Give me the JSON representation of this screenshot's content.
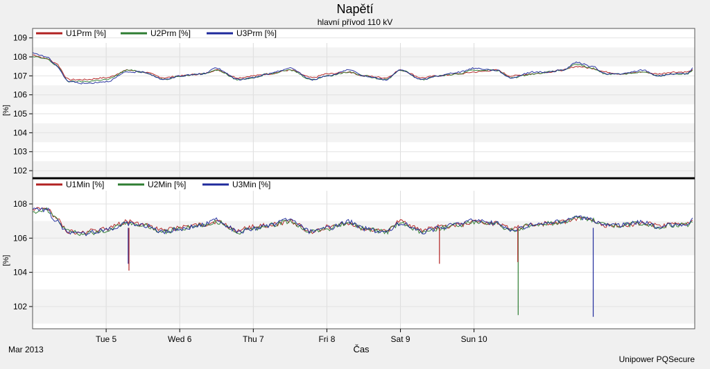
{
  "title": "Napětí",
  "subtitle": "hlavní přívod 110 kV",
  "footer": "Unipower PQSecure",
  "colors": {
    "phase1": "#b22222",
    "phase2": "#2e7d32",
    "phase3": "#1f2a9c"
  },
  "chart_data": [
    {
      "type": "line",
      "panel": "top",
      "ylabel": "[%]",
      "ylim": [
        101.6,
        109.5
      ],
      "yticks": [
        "102",
        "103",
        "104",
        "105",
        "106",
        "107",
        "108",
        "109"
      ],
      "grid": true,
      "legend": [
        "U1Prm [%]",
        "U2Prm [%]",
        "U3Prm [%]"
      ],
      "x_days": [
        3.0,
        3.2,
        3.3,
        3.5,
        3.7,
        4.0,
        4.3,
        4.5,
        4.8,
        5.0,
        5.3,
        5.5,
        5.8,
        6.0,
        6.2,
        6.5,
        6.8,
        7.0,
        7.3,
        7.5,
        7.8,
        8.0,
        8.3,
        8.5,
        8.8,
        9.0,
        9.3,
        9.5,
        9.8,
        10.0,
        10.2,
        10.4,
        10.6,
        10.8,
        11.0,
        11.3,
        11.5,
        11.7,
        11.9,
        11.97
      ],
      "series": [
        {
          "name": "U1Prm [%]",
          "values": [
            108.1,
            107.9,
            107.7,
            106.8,
            106.8,
            106.9,
            107.3,
            107.2,
            106.9,
            107.0,
            107.1,
            107.3,
            106.9,
            107.0,
            107.1,
            107.3,
            106.9,
            107.1,
            107.2,
            107.0,
            106.9,
            107.3,
            106.9,
            107.0,
            107.1,
            107.2,
            107.3,
            107.0,
            107.1,
            107.2,
            107.3,
            107.5,
            107.4,
            107.2,
            107.1,
            107.2,
            107.1,
            107.2,
            107.2,
            107.3
          ]
        },
        {
          "name": "U2Prm [%]",
          "values": [
            108.0,
            107.9,
            107.6,
            106.7,
            106.7,
            106.8,
            107.3,
            107.2,
            106.8,
            107.0,
            107.1,
            107.3,
            106.8,
            106.9,
            107.1,
            107.3,
            106.8,
            107.0,
            107.2,
            107.0,
            106.8,
            107.3,
            106.8,
            107.0,
            107.1,
            107.3,
            107.3,
            106.9,
            107.1,
            107.2,
            107.3,
            107.6,
            107.4,
            107.1,
            107.1,
            107.2,
            107.0,
            107.1,
            107.1,
            107.3
          ]
        },
        {
          "name": "U3Prm [%]",
          "values": [
            108.2,
            108.0,
            107.6,
            106.7,
            106.6,
            106.7,
            107.2,
            107.2,
            106.8,
            107.0,
            107.1,
            107.4,
            106.8,
            106.9,
            107.1,
            107.4,
            106.8,
            107.0,
            107.3,
            107.0,
            106.8,
            107.3,
            106.8,
            107.0,
            107.2,
            107.4,
            107.3,
            106.9,
            107.2,
            107.2,
            107.3,
            107.7,
            107.5,
            107.1,
            107.1,
            107.3,
            107.0,
            107.1,
            107.1,
            107.4
          ]
        }
      ]
    },
    {
      "type": "line",
      "panel": "bottom",
      "ylabel": "[%]",
      "ylim": [
        100.7,
        109.5
      ],
      "yticks": [
        "102",
        "104",
        "106",
        "108"
      ],
      "grid": true,
      "legend": [
        "U1Min [%]",
        "U2Min [%]",
        "U3Min [%]"
      ],
      "x_days": [
        3.0,
        3.2,
        3.3,
        3.5,
        3.7,
        4.0,
        4.3,
        4.5,
        4.8,
        5.0,
        5.3,
        5.5,
        5.8,
        6.0,
        6.2,
        6.5,
        6.8,
        7.0,
        7.3,
        7.5,
        7.8,
        8.0,
        8.3,
        8.5,
        8.8,
        9.0,
        9.3,
        9.5,
        9.8,
        10.0,
        10.2,
        10.4,
        10.6,
        10.8,
        11.0,
        11.3,
        11.5,
        11.7,
        11.9,
        11.97
      ],
      "series": [
        {
          "name": "U1Min [%]",
          "values": [
            107.8,
            107.9,
            107.4,
            106.5,
            106.5,
            106.7,
            107.1,
            106.9,
            106.6,
            106.8,
            106.9,
            107.1,
            106.6,
            106.8,
            106.9,
            107.1,
            106.5,
            106.8,
            107.0,
            106.7,
            106.6,
            107.1,
            106.6,
            106.8,
            106.9,
            107.1,
            107.0,
            106.7,
            106.9,
            107.0,
            107.1,
            107.3,
            107.2,
            106.9,
            106.9,
            107.0,
            106.9,
            106.9,
            107.0,
            107.1
          ]
        },
        {
          "name": "U2Min [%]",
          "values": [
            107.7,
            107.8,
            107.3,
            106.5,
            106.4,
            106.6,
            107.0,
            106.9,
            106.5,
            106.7,
            106.9,
            107.1,
            106.5,
            106.7,
            106.9,
            107.1,
            106.5,
            106.7,
            107.0,
            106.7,
            106.5,
            107.0,
            106.5,
            106.7,
            106.9,
            107.1,
            107.0,
            106.6,
            106.9,
            107.0,
            107.1,
            107.3,
            107.2,
            106.9,
            106.9,
            107.0,
            106.8,
            106.9,
            106.9,
            107.1
          ]
        },
        {
          "name": "U3Min [%]",
          "values": [
            107.9,
            107.8,
            107.2,
            106.4,
            106.4,
            106.6,
            107.0,
            106.9,
            106.5,
            106.7,
            106.9,
            107.2,
            106.5,
            106.7,
            106.9,
            107.2,
            106.5,
            106.7,
            107.1,
            106.7,
            106.5,
            107.0,
            106.5,
            106.7,
            107.0,
            107.2,
            107.0,
            106.6,
            106.9,
            107.0,
            107.1,
            107.4,
            107.2,
            106.9,
            106.9,
            107.1,
            106.8,
            106.9,
            106.9,
            107.2
          ]
        }
      ],
      "dips": [
        {
          "series": "U3Min [%]",
          "x_day": 4.3,
          "min": 104.5
        },
        {
          "series": "U1Min [%]",
          "x_day": 4.31,
          "min": 104.1
        },
        {
          "series": "U1Min [%]",
          "x_day": 8.53,
          "min": 104.5
        },
        {
          "series": "U2Min [%]",
          "x_day": 9.6,
          "min": 101.5
        },
        {
          "series": "U1Min [%]",
          "x_day": 9.595,
          "min": 104.6
        },
        {
          "series": "U3Min [%]",
          "x_day": 10.62,
          "min": 101.4
        }
      ]
    }
  ],
  "x_axis": {
    "label": "Čas",
    "range_days": [
      3.0,
      12.0
    ],
    "start_label": "Mar 2013",
    "ticks": [
      {
        "label": "Tue 5",
        "day": 4.0
      },
      {
        "label": "Wed 6",
        "day": 5.0
      },
      {
        "label": "Thu 7",
        "day": 6.0
      },
      {
        "label": "Fri 8",
        "day": 7.0
      },
      {
        "label": "Sat 9",
        "day": 8.0
      },
      {
        "label": "Sun 10",
        "day": 9.0
      }
    ]
  }
}
